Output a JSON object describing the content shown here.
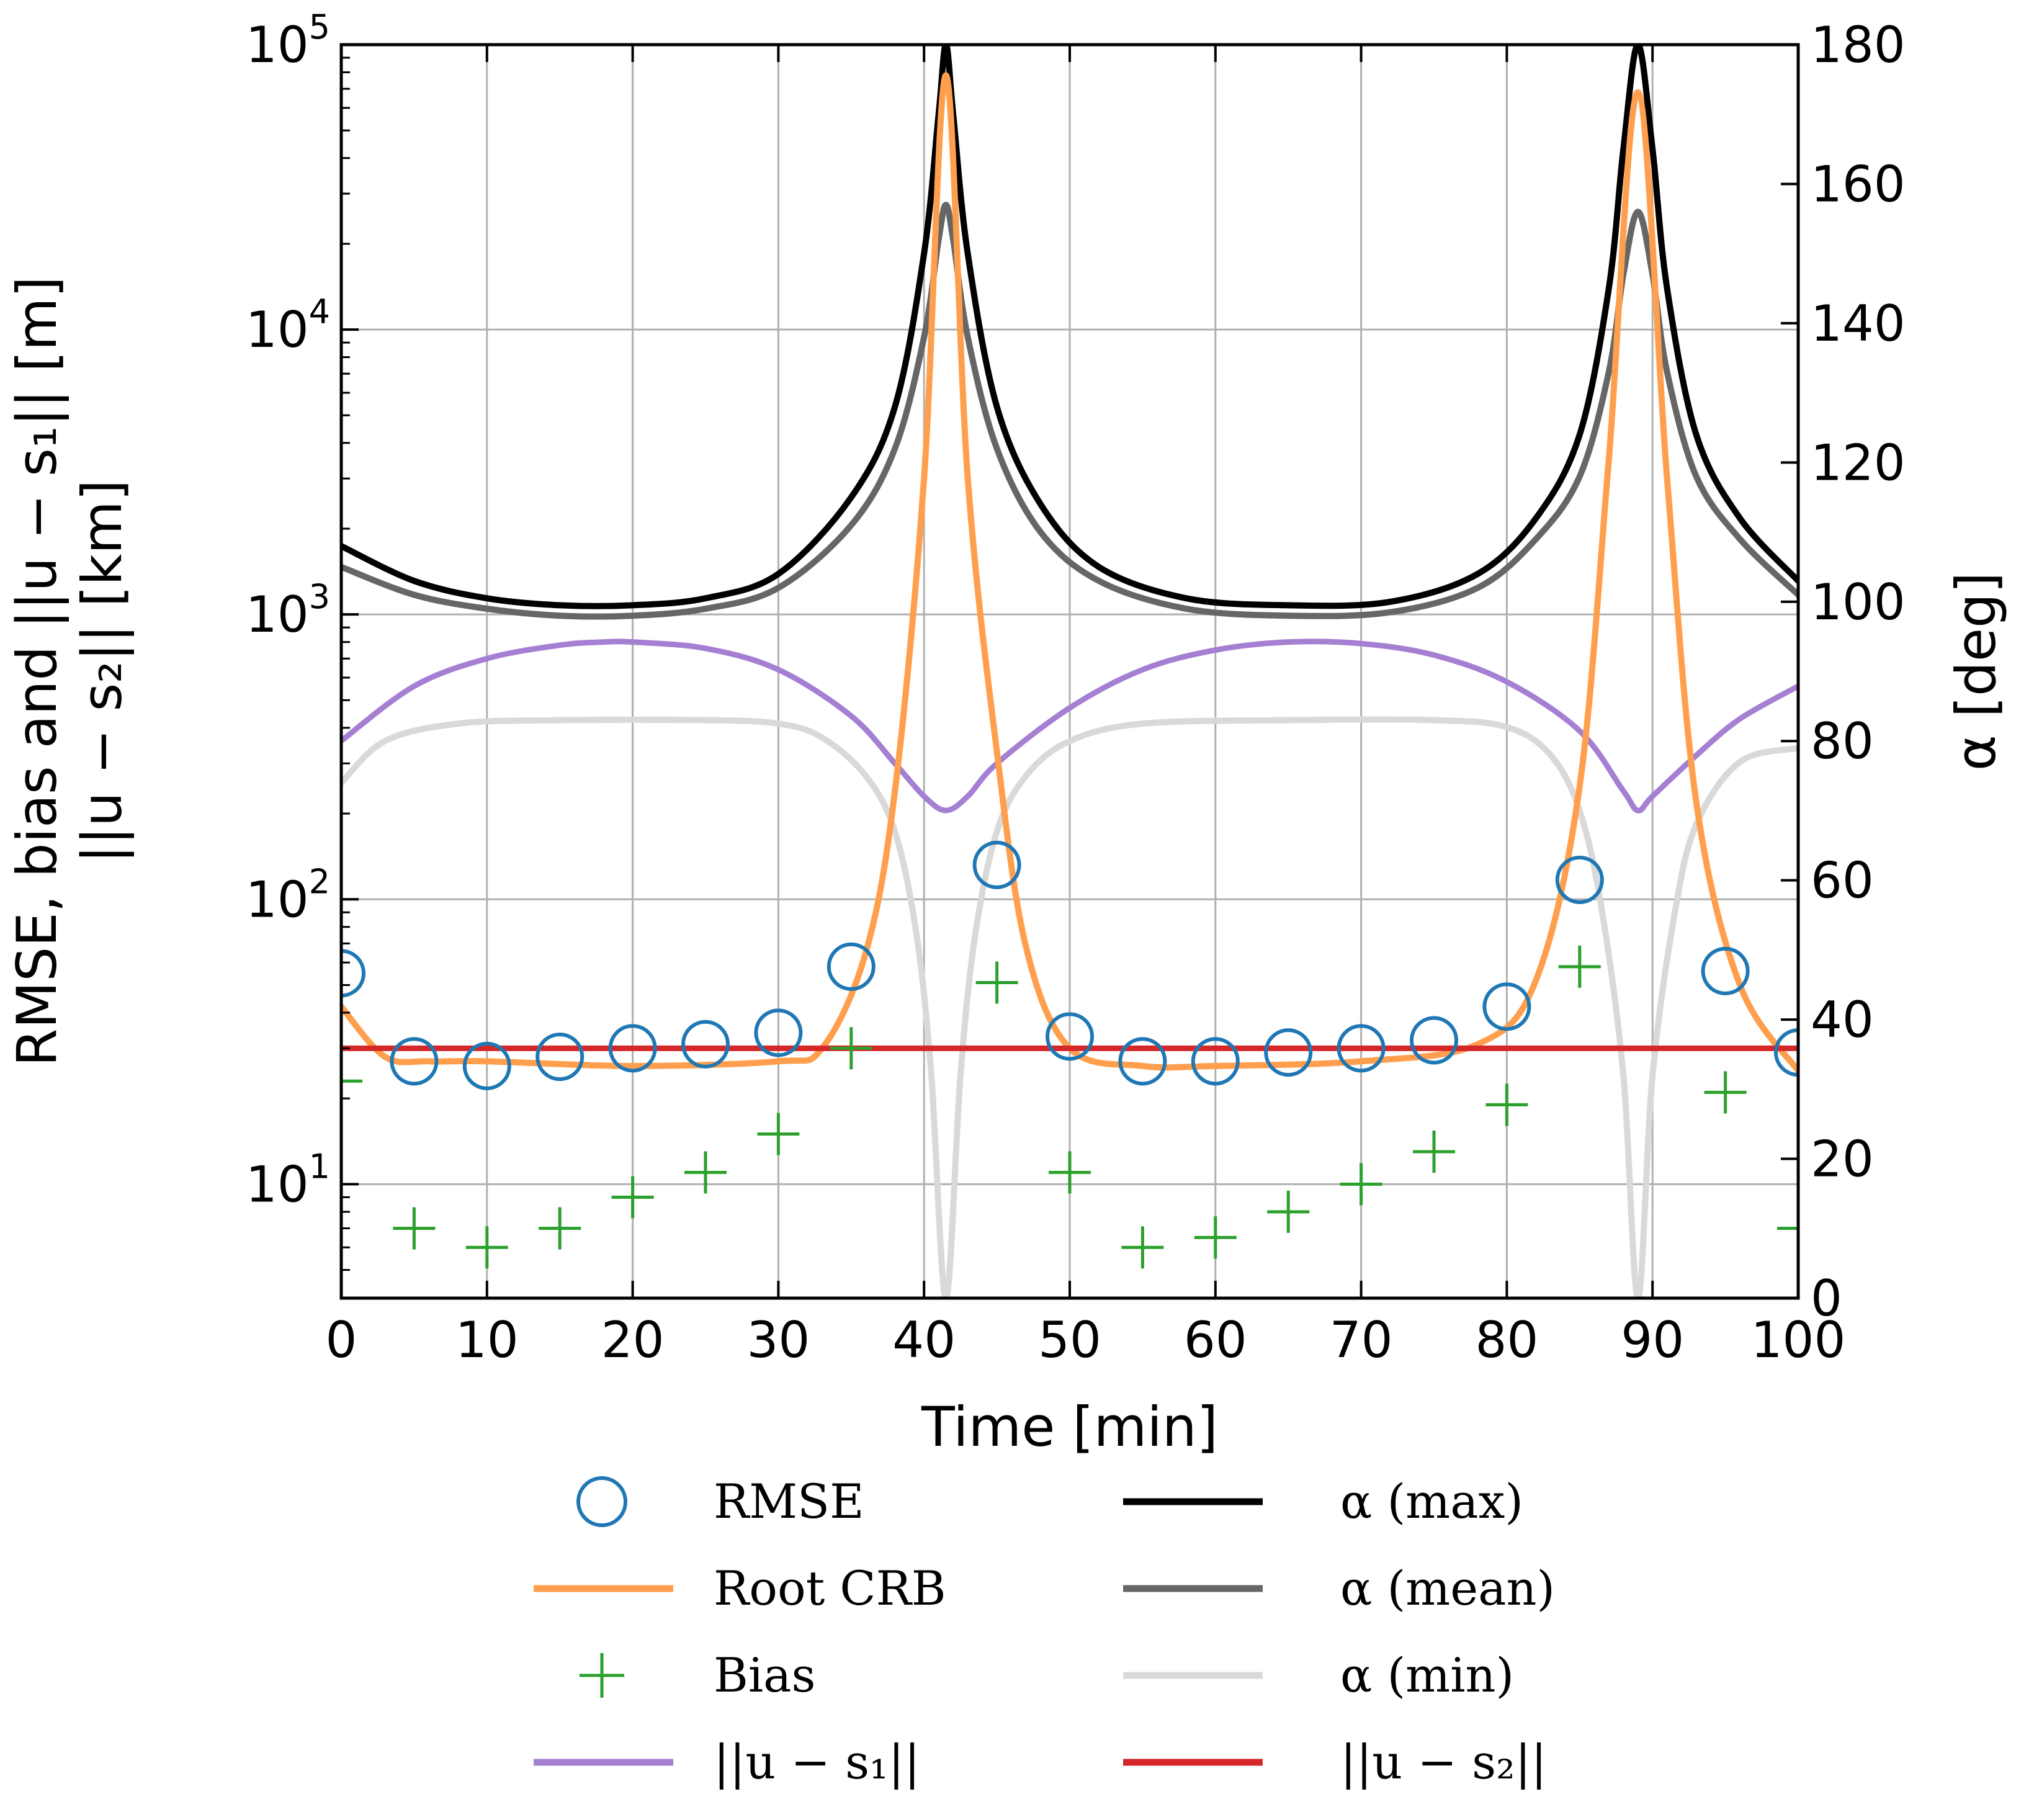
{
  "chart_data": {
    "type": "line",
    "xlabel": "Time [min]",
    "ylabel_left_line1": "RMSE, bias and ||u − s₁|| [m]",
    "ylabel_left_line2": "||u − s₂|| [km]",
    "ylabel_right": "α [deg]",
    "x_range": [
      0,
      100
    ],
    "y_left_range_log10": [
      0.6,
      5
    ],
    "y_right_range": [
      0,
      180
    ],
    "grid": true,
    "x_ticks": [
      {
        "value": 0,
        "label": "0"
      },
      {
        "value": 10,
        "label": "10"
      },
      {
        "value": 20,
        "label": "20"
      },
      {
        "value": 30,
        "label": "30"
      },
      {
        "value": 40,
        "label": "40"
      },
      {
        "value": 50,
        "label": "50"
      },
      {
        "value": 60,
        "label": "60"
      },
      {
        "value": 70,
        "label": "70"
      },
      {
        "value": 80,
        "label": "80"
      },
      {
        "value": 90,
        "label": "90"
      },
      {
        "value": 100,
        "label": "100"
      }
    ],
    "y_left_ticks": [
      {
        "exp": 1,
        "base": "10",
        "sup": "1"
      },
      {
        "exp": 2,
        "base": "10",
        "sup": "2"
      },
      {
        "exp": 3,
        "base": "10",
        "sup": "3"
      },
      {
        "exp": 4,
        "base": "10",
        "sup": "4"
      },
      {
        "exp": 5,
        "base": "10",
        "sup": "5"
      }
    ],
    "y_right_ticks": [
      {
        "value": 0,
        "label": "0"
      },
      {
        "value": 20,
        "label": "20"
      },
      {
        "value": 40,
        "label": "40"
      },
      {
        "value": 60,
        "label": "60"
      },
      {
        "value": 80,
        "label": "80"
      },
      {
        "value": 100,
        "label": "100"
      },
      {
        "value": 120,
        "label": "120"
      },
      {
        "value": 140,
        "label": "140"
      },
      {
        "value": 160,
        "label": "160"
      },
      {
        "value": 180,
        "label": "180"
      }
    ],
    "peaks_min": [
      41.5,
      89
    ],
    "series": [
      {
        "name": "RMSE",
        "axis": "left",
        "kind": "marker-circle",
        "color": "#1f77b4",
        "x": [
          0,
          5,
          10,
          15,
          20,
          25,
          30,
          35,
          45,
          50,
          55,
          60,
          65,
          70,
          75,
          80,
          85,
          95,
          100
        ],
        "y": [
          55,
          27,
          26,
          28,
          30,
          31,
          34,
          58,
          132,
          33,
          27,
          27,
          29,
          30,
          32,
          42,
          117,
          56,
          29
        ]
      },
      {
        "name": "Bias",
        "axis": "left",
        "kind": "marker-plus",
        "color": "#2ca02c",
        "x": [
          0,
          5,
          10,
          15,
          20,
          25,
          30,
          35,
          45,
          50,
          55,
          60,
          65,
          70,
          75,
          80,
          85,
          95,
          100
        ],
        "y": [
          23,
          7,
          6,
          7,
          9,
          11,
          15,
          30,
          51,
          11,
          6,
          6.5,
          8,
          10,
          13,
          19,
          58,
          21,
          7
        ]
      },
      {
        "name": "Root CRB",
        "axis": "left",
        "kind": "line",
        "color": "#ff9f4d",
        "width": 10,
        "x": [
          0,
          3,
          6,
          10,
          20,
          30,
          33,
          36,
          38,
          40,
          41.5,
          43,
          45,
          47,
          50,
          55,
          60,
          70,
          78,
          82,
          85,
          87,
          89,
          91,
          93,
          96,
          100
        ],
        "y": [
          42,
          28,
          27,
          27,
          26,
          27,
          30,
          65,
          240,
          3000,
          78000,
          3000,
          330,
          68,
          30,
          26,
          26,
          27,
          31,
          52,
          250,
          3500,
          68000,
          3000,
          220,
          50,
          25
        ]
      },
      {
        "name": "||u − s₁||",
        "axis": "left",
        "kind": "line",
        "color": "#a57fd2",
        "width": 9,
        "x": [
          0,
          5,
          10,
          15,
          18,
          20,
          25,
          30,
          35,
          38,
          40,
          41.5,
          43,
          45,
          50,
          55,
          60,
          65,
          70,
          75,
          80,
          85,
          88,
          89,
          90,
          93,
          96,
          100
        ],
        "y": [
          360,
          560,
          700,
          780,
          800,
          800,
          760,
          640,
          440,
          300,
          230,
          205,
          230,
          300,
          470,
          640,
          750,
          800,
          790,
          720,
          580,
          390,
          240,
          205,
          230,
          320,
          430,
          560
        ]
      },
      {
        "name": "||u − s₂||",
        "axis": "left",
        "kind": "line",
        "color": "#d62728",
        "width": 9,
        "x": [
          0,
          100
        ],
        "y": [
          30,
          30
        ]
      },
      {
        "name": "α (max)",
        "axis": "right",
        "kind": "line",
        "color": "#000000",
        "width": 10,
        "x": [
          0,
          5,
          10,
          15,
          20,
          25,
          30,
          35,
          38,
          40,
          41,
          41.5,
          42,
          43,
          45,
          48,
          52,
          58,
          65,
          72,
          78,
          82,
          85,
          87,
          88,
          89,
          90,
          91,
          93,
          96,
          100
        ],
        "y": [
          108,
          103,
          100.5,
          99.5,
          99.5,
          100.5,
          104,
          115,
          128,
          150,
          170,
          180,
          170,
          150,
          128,
          114,
          105,
          100.5,
          99.5,
          100,
          104,
          112,
          124,
          145,
          165,
          180,
          165,
          145,
          124,
          112,
          103
        ]
      },
      {
        "name": "α (mean)",
        "axis": "right",
        "kind": "line",
        "color": "#666666",
        "width": 10,
        "x": [
          0,
          5,
          10,
          15,
          20,
          25,
          30,
          35,
          38,
          40,
          41,
          41.5,
          42,
          43,
          45,
          48,
          52,
          58,
          65,
          72,
          78,
          82,
          85,
          87,
          88,
          89,
          90,
          91,
          93,
          96,
          100
        ],
        "y": [
          105,
          101,
          99,
          98,
          98,
          99,
          102,
          111,
          122,
          138,
          152,
          157,
          152,
          138,
          122,
          110,
          103,
          99,
          98,
          98.5,
          102,
          109,
          118,
          133,
          147,
          156,
          147,
          133,
          118,
          109,
          101
        ]
      },
      {
        "name": "α (min)",
        "axis": "right",
        "kind": "line",
        "color": "#d9d9d9",
        "width": 10,
        "x": [
          0,
          3,
          8,
          15,
          25,
          30,
          33,
          36,
          38,
          39.5,
          40.5,
          41.5,
          42.5,
          43.5,
          45,
          47,
          50,
          55,
          65,
          75,
          80,
          83,
          85,
          86.5,
          88,
          89,
          90,
          91.5,
          93,
          96,
          100
        ],
        "y": [
          74,
          80,
          82.5,
          83,
          83,
          82.5,
          80.5,
          75,
          67,
          52,
          32,
          0,
          32,
          52,
          67,
          75,
          80,
          82.5,
          83,
          83,
          82,
          78,
          70,
          56,
          32,
          0,
          32,
          55,
          68,
          77,
          79
        ]
      }
    ]
  },
  "legend": {
    "items": [
      {
        "key": "rmse",
        "label": "RMSE",
        "kind": "circle",
        "color": "#1f77b4"
      },
      {
        "key": "alpha_max",
        "label": "α (max)",
        "kind": "line",
        "color": "#000000"
      },
      {
        "key": "root_crb",
        "label": "Root CRB",
        "kind": "line",
        "color": "#ff9f4d"
      },
      {
        "key": "alpha_mean",
        "label": "α (mean)",
        "kind": "line",
        "color": "#666666"
      },
      {
        "key": "bias",
        "label": "Bias",
        "kind": "plus",
        "color": "#2ca02c"
      },
      {
        "key": "alpha_min",
        "label": "α (min)",
        "kind": "line",
        "color": "#d9d9d9"
      },
      {
        "key": "u_s1",
        "label": "||u − s₁||",
        "kind": "line",
        "color": "#a57fd2"
      },
      {
        "key": "u_s2",
        "label": "||u − s₂||",
        "kind": "line",
        "color": "#d62728"
      }
    ]
  }
}
